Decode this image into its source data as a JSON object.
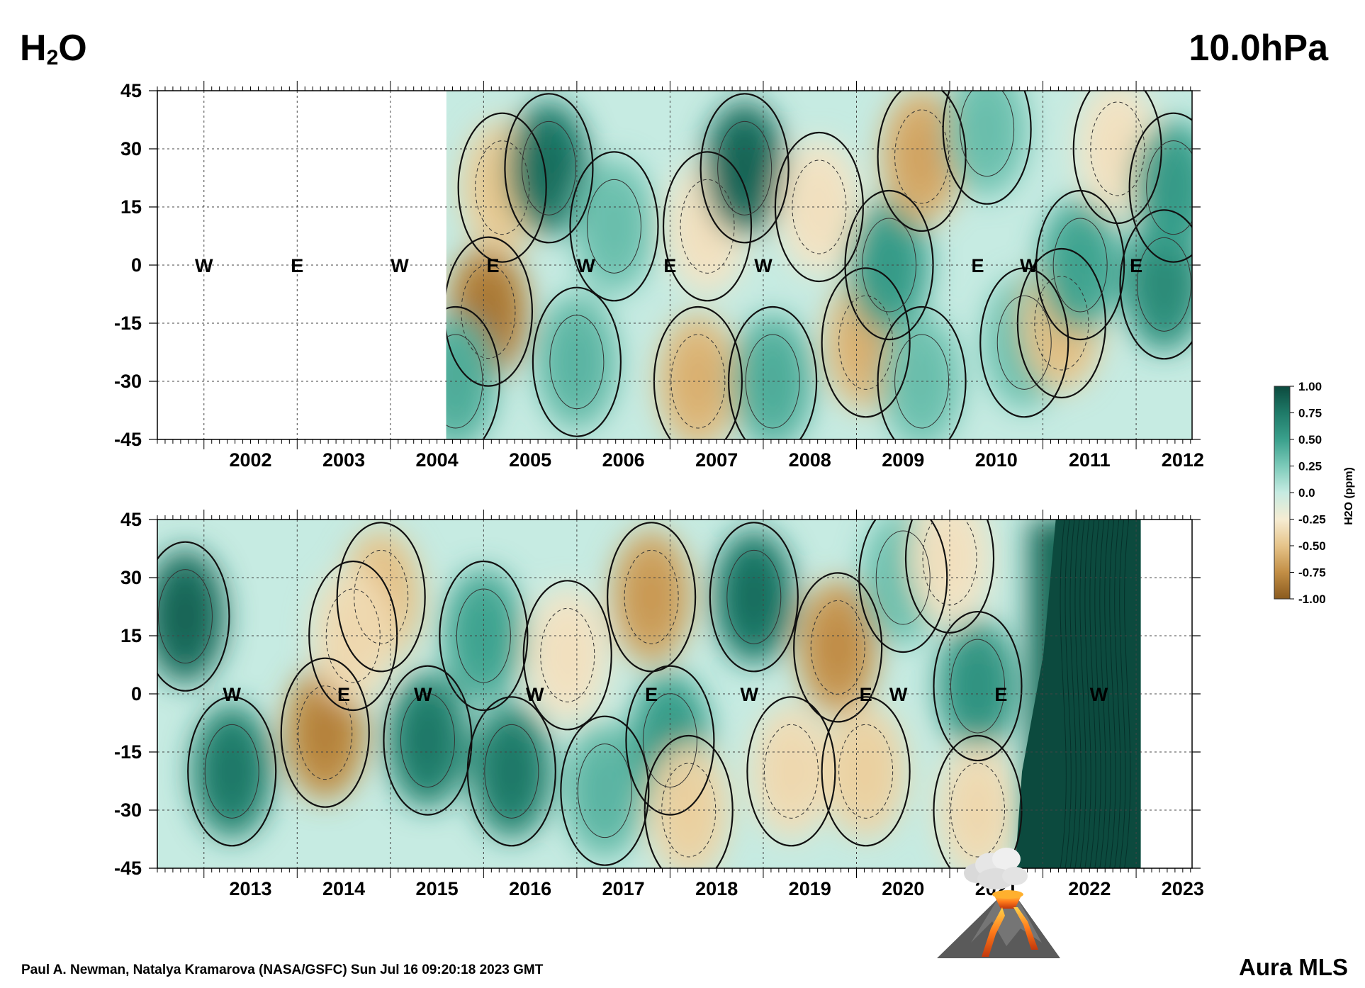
{
  "header": {
    "variable_main": "H",
    "variable_sub": "2",
    "variable_tail": "O",
    "level": "10.0hPa"
  },
  "footer": {
    "credit": "Paul A. Newman, Natalya Kramarova (NASA/GSFC) Sun Jul 16 09:20:18 2023 GMT",
    "instrument": "Aura MLS"
  },
  "colorbar": {
    "label": "H2O (ppm)",
    "ticks": [
      "1.00",
      "0.75",
      "0.50",
      "0.25",
      "0.0",
      "-0.25",
      "-0.50",
      "-0.75",
      "-1.00"
    ],
    "colors": [
      "#0c4a3e",
      "#1f7a68",
      "#3aa08c",
      "#7ccab9",
      "#c6ebe2",
      "#f6ecd3",
      "#e6c48a",
      "#c28e45",
      "#8a5a1e"
    ]
  },
  "volcano": {
    "icon": "volcano-icon"
  },
  "chart_data": [
    {
      "type": "heatmap",
      "title": "",
      "xlabel": "",
      "ylabel": "",
      "ylim": [
        -45,
        45
      ],
      "xlim": [
        2001.5,
        2012.6
      ],
      "yticks": [
        "45",
        "30",
        "15",
        "0",
        "-15",
        "-30",
        "-45"
      ],
      "xticks": [
        "2002",
        "2003",
        "2004",
        "2005",
        "2006",
        "2007",
        "2008",
        "2009",
        "2010",
        "2011",
        "2012"
      ],
      "data_start": 2004.6,
      "data_end": 2012.6,
      "qbo_phases": [
        {
          "t": 2002.0,
          "label": "W"
        },
        {
          "t": 2003.0,
          "label": "E"
        },
        {
          "t": 2004.1,
          "label": "W"
        },
        {
          "t": 2005.1,
          "label": "E"
        },
        {
          "t": 2006.1,
          "label": "W"
        },
        {
          "t": 2007.0,
          "label": "E"
        },
        {
          "t": 2008.0,
          "label": "W"
        },
        {
          "t": 2010.3,
          "label": "E"
        },
        {
          "t": 2010.85,
          "label": "W"
        },
        {
          "t": 2012.0,
          "label": "E"
        }
      ],
      "anomalies": [
        {
          "t": 2005.05,
          "lat": -12,
          "v": -0.8
        },
        {
          "t": 2005.2,
          "lat": 20,
          "v": -0.45
        },
        {
          "t": 2004.7,
          "lat": -30,
          "v": 0.4
        },
        {
          "t": 2005.7,
          "lat": 25,
          "v": 0.75
        },
        {
          "t": 2006.0,
          "lat": -25,
          "v": 0.35
        },
        {
          "t": 2006.4,
          "lat": 10,
          "v": 0.3
        },
        {
          "t": 2007.3,
          "lat": -30,
          "v": -0.55
        },
        {
          "t": 2007.4,
          "lat": 10,
          "v": -0.3
        },
        {
          "t": 2007.8,
          "lat": 25,
          "v": 0.8
        },
        {
          "t": 2008.1,
          "lat": -30,
          "v": 0.4
        },
        {
          "t": 2008.6,
          "lat": 15,
          "v": -0.3
        },
        {
          "t": 2009.1,
          "lat": -20,
          "v": -0.55
        },
        {
          "t": 2009.35,
          "lat": 0,
          "v": 0.5
        },
        {
          "t": 2009.7,
          "lat": 28,
          "v": -0.6
        },
        {
          "t": 2009.7,
          "lat": -30,
          "v": 0.3
        },
        {
          "t": 2010.4,
          "lat": 35,
          "v": 0.3
        },
        {
          "t": 2010.8,
          "lat": -20,
          "v": 0.3
        },
        {
          "t": 2011.2,
          "lat": -15,
          "v": -0.5
        },
        {
          "t": 2011.4,
          "lat": 0,
          "v": 0.45
        },
        {
          "t": 2011.8,
          "lat": 30,
          "v": -0.3
        },
        {
          "t": 2012.3,
          "lat": -5,
          "v": 0.6
        },
        {
          "t": 2012.4,
          "lat": 20,
          "v": 0.5
        }
      ]
    },
    {
      "type": "heatmap",
      "title": "",
      "xlabel": "",
      "ylabel": "",
      "ylim": [
        -45,
        45
      ],
      "xlim": [
        2012.5,
        2023.6
      ],
      "yticks": [
        "45",
        "30",
        "15",
        "0",
        "-15",
        "-30",
        "-45"
      ],
      "xticks": [
        "2013",
        "2014",
        "2015",
        "2016",
        "2017",
        "2018",
        "2019",
        "2020",
        "2021",
        "2022",
        "2023"
      ],
      "data_start": 2012.5,
      "data_end": 2023.05,
      "qbo_phases": [
        {
          "t": 2013.3,
          "label": "W"
        },
        {
          "t": 2014.5,
          "label": "E"
        },
        {
          "t": 2015.35,
          "label": "W"
        },
        {
          "t": 2016.55,
          "label": "W"
        },
        {
          "t": 2017.8,
          "label": "E"
        },
        {
          "t": 2018.85,
          "label": "W"
        },
        {
          "t": 2020.1,
          "label": "E"
        },
        {
          "t": 2020.45,
          "label": "W"
        },
        {
          "t": 2021.55,
          "label": "E"
        },
        {
          "t": 2022.6,
          "label": "W"
        }
      ],
      "anomalies": [
        {
          "t": 2012.8,
          "lat": 20,
          "v": 0.8
        },
        {
          "t": 2013.3,
          "lat": -20,
          "v": 0.7
        },
        {
          "t": 2014.3,
          "lat": -10,
          "v": -0.75
        },
        {
          "t": 2014.9,
          "lat": 25,
          "v": -0.5
        },
        {
          "t": 2014.6,
          "lat": 15,
          "v": -0.35
        },
        {
          "t": 2015.4,
          "lat": -12,
          "v": 0.7
        },
        {
          "t": 2016.0,
          "lat": 15,
          "v": 0.45
        },
        {
          "t": 2016.3,
          "lat": -20,
          "v": 0.7
        },
        {
          "t": 2016.9,
          "lat": 10,
          "v": -0.3
        },
        {
          "t": 2017.3,
          "lat": -25,
          "v": 0.35
        },
        {
          "t": 2017.8,
          "lat": 25,
          "v": -0.65
        },
        {
          "t": 2018.0,
          "lat": -12,
          "v": 0.5
        },
        {
          "t": 2018.2,
          "lat": -30,
          "v": -0.4
        },
        {
          "t": 2018.9,
          "lat": 25,
          "v": 0.75
        },
        {
          "t": 2019.3,
          "lat": -20,
          "v": -0.35
        },
        {
          "t": 2019.8,
          "lat": 12,
          "v": -0.7
        },
        {
          "t": 2020.1,
          "lat": -20,
          "v": -0.4
        },
        {
          "t": 2020.5,
          "lat": 30,
          "v": 0.3
        },
        {
          "t": 2021.0,
          "lat": 35,
          "v": -0.3
        },
        {
          "t": 2021.3,
          "lat": 2,
          "v": 0.55
        },
        {
          "t": 2021.3,
          "lat": -30,
          "v": -0.35
        }
      ],
      "hunga_tonga": {
        "t_start": 2021.7,
        "t_end": 2023.05,
        "v": 1.0
      }
    }
  ]
}
